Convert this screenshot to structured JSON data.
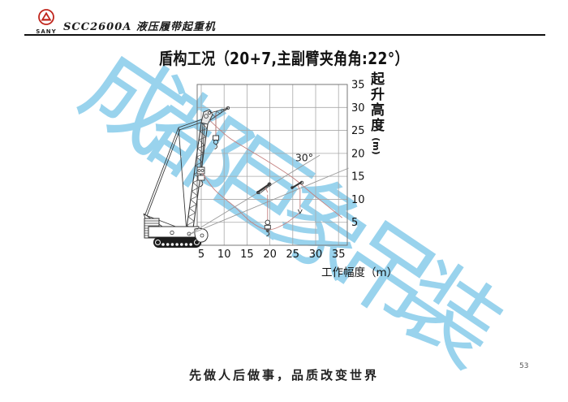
{
  "header": {
    "logo_text": "SANY",
    "doc_title": "SCC2600A 液压履带起重机"
  },
  "title": "盾构工况（20+7,主副臂夹角角:22°）",
  "watermark": {
    "text": "成都巨象吊装",
    "color": "#8CCDEB"
  },
  "chart_data": {
    "type": "line",
    "title": "盾构工况（20+7,主副臂夹角角:22°）",
    "xlabel": "工作幅度（m）",
    "ylabel": "起升高度(m)",
    "ylabel_main": "起升高度",
    "ylabel_unit": "(m)",
    "x_ticks": [
      5,
      10,
      15,
      20,
      25,
      30,
      35
    ],
    "y_ticks": [
      35,
      30,
      25,
      20,
      15,
      10,
      5
    ],
    "xlim": [
      4,
      37
    ],
    "ylim": [
      0,
      35
    ],
    "grid": true,
    "legend": false,
    "annotations": [
      {
        "text": "30°",
        "x": 27.5,
        "y": 18.3
      }
    ],
    "series": [
      {
        "name": "jib-tip-trajectory",
        "type": "curve",
        "color": "#C4807F",
        "points": [
          [
            6.8,
            27.2
          ],
          [
            11,
            23.5
          ],
          [
            15,
            21
          ],
          [
            19.5,
            18.3
          ],
          [
            25,
            14.7
          ],
          [
            30,
            10.6
          ],
          [
            35.8,
            6.0
          ]
        ]
      },
      {
        "name": "hook-trajectory",
        "type": "curve",
        "color": "#C4807F",
        "points": [
          [
            5.2,
            15.7
          ],
          [
            8,
            12
          ],
          [
            12.4,
            8.3
          ],
          [
            16,
            5
          ],
          [
            19.5,
            3.4
          ],
          [
            23,
            4.5
          ],
          [
            26.6,
            7.1
          ]
        ]
      },
      {
        "name": "boom-position-30deg",
        "type": "line",
        "color": "#9A9A9A",
        "points": [
          [
            2.3,
            2.3
          ],
          [
            30.9,
            19.6
          ]
        ]
      },
      {
        "name": "boom-position-low",
        "type": "line",
        "color": "#9A9A9A",
        "points": [
          [
            2.3,
            2.3
          ],
          [
            37.2,
            16.8
          ]
        ]
      }
    ],
    "hook_drops": [
      {
        "from": [
          19.5,
          11.0
        ],
        "to": [
          19.5,
          5.5
        ],
        "size": "lg"
      },
      {
        "from": [
          26.6,
          12.2
        ],
        "to": [
          26.6,
          7.8
        ],
        "size": "sm"
      }
    ]
  },
  "footer": {
    "slogan": "先做人后做事，品质改变世界",
    "page_number": "53"
  }
}
